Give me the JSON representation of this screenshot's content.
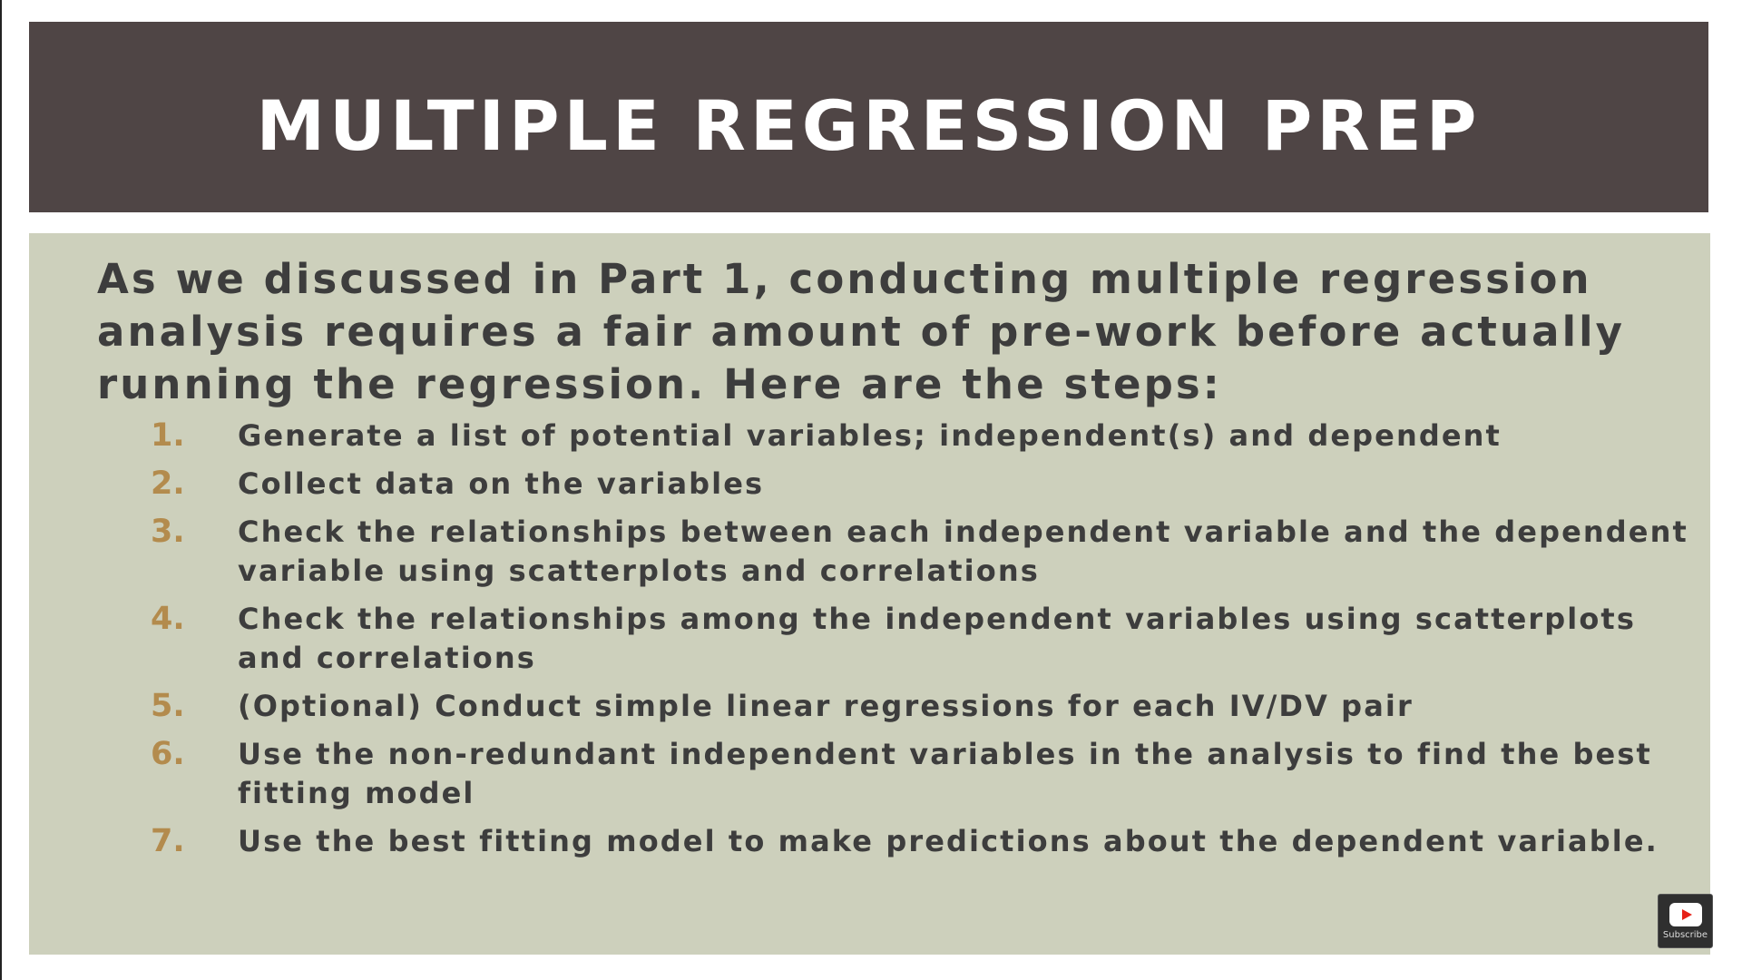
{
  "slide": {
    "title": "MULTIPLE REGRESSION PREP",
    "intro": "As we discussed in Part 1, conducting multiple regression analysis requires a fair amount of pre-work before actually running the regression. Here are the steps:",
    "steps": [
      {
        "number": "1.",
        "text": "Generate a list of potential variables; independent(s) and dependent"
      },
      {
        "number": "2.",
        "text": "Collect data on the variables"
      },
      {
        "number": "3.",
        "text": "Check the relationships between each independent variable and the dependent variable using scatterplots and correlations"
      },
      {
        "number": "4.",
        "text": "Check the relationships among the independent variables using scatterplots and correlations"
      },
      {
        "number": "5.",
        "text": "(Optional) Conduct simple linear regressions for each IV/DV pair"
      },
      {
        "number": "6.",
        "text": "Use the non-redundant independent variables in the analysis to find the best fitting model"
      },
      {
        "number": "7.",
        "text": "Use the best fitting model to make predictions about the dependent variable."
      }
    ]
  },
  "overlay": {
    "subscribe_label": "Subscribe",
    "icon": "youtube-play-icon"
  },
  "colors": {
    "title_bar": "#4f4545",
    "panel": "#cdd0bc",
    "text": "#3d3d3d",
    "number_accent": "#b38b4d"
  }
}
